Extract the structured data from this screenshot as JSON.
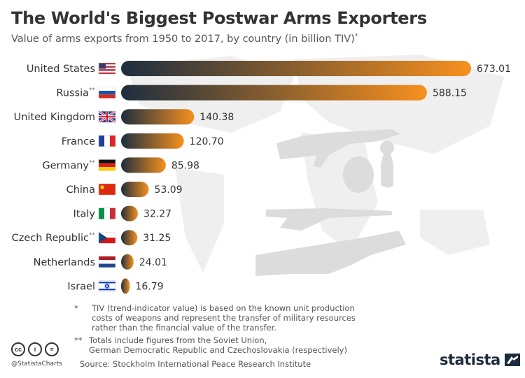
{
  "title": "The World's Biggest Postwar Arms Exporters",
  "subtitle": "Value of arms exports from 1950 to 2017, by country (in billion TIV)",
  "subtitle_mark": "*",
  "colors": {
    "bar_start": "#1d2e3e",
    "bar_end": "#f7901e",
    "text": "#333333",
    "muted": "#555555"
  },
  "chart_data": {
    "type": "bar",
    "orientation": "horizontal",
    "categories": [
      "United States",
      "Russia",
      "United Kingdom",
      "France",
      "Germany",
      "China",
      "Italy",
      "Czech Republic",
      "Netherlands",
      "Israel"
    ],
    "category_marks": [
      "",
      "**",
      "",
      "",
      "**",
      "",
      "",
      "**",
      "",
      ""
    ],
    "value_labels": [
      "673.01",
      "588.15",
      "140.38",
      "120.70",
      "85.98",
      "53.09",
      "32.27",
      "31.25",
      "24.01",
      "16.79"
    ],
    "values": [
      673.01,
      588.15,
      140.38,
      120.7,
      85.98,
      53.09,
      32.27,
      31.25,
      24.01,
      16.79
    ],
    "flags": [
      "us-flag",
      "russia-flag",
      "uk-flag",
      "france-flag",
      "germany-flag",
      "china-flag",
      "italy-flag",
      "czech-flag",
      "netherlands-flag",
      "israel-flag"
    ],
    "xlim": [
      0,
      673.01
    ],
    "grid": false,
    "legend": "none"
  },
  "notes": {
    "note1_mark": "*",
    "note1_text": "TIV (trend-indicator value) is based on the known unit production\ncosts of weapons and represent the transfer of military resources\nrather than the financial value of the transfer.",
    "note2_mark": "**",
    "note2_text": "Totals include figures from the Soviet Union,\nGerman Democratic Republic and Czechoslovakia (respectively)"
  },
  "source": "Source: Stockholm International Peace Research Institute",
  "handle": "@StatistaCharts",
  "logo": "statista",
  "license_icons": [
    "cc-icon",
    "attribution-icon",
    "no-derivatives-icon"
  ],
  "license_labels": [
    "cc",
    "i",
    "="
  ]
}
